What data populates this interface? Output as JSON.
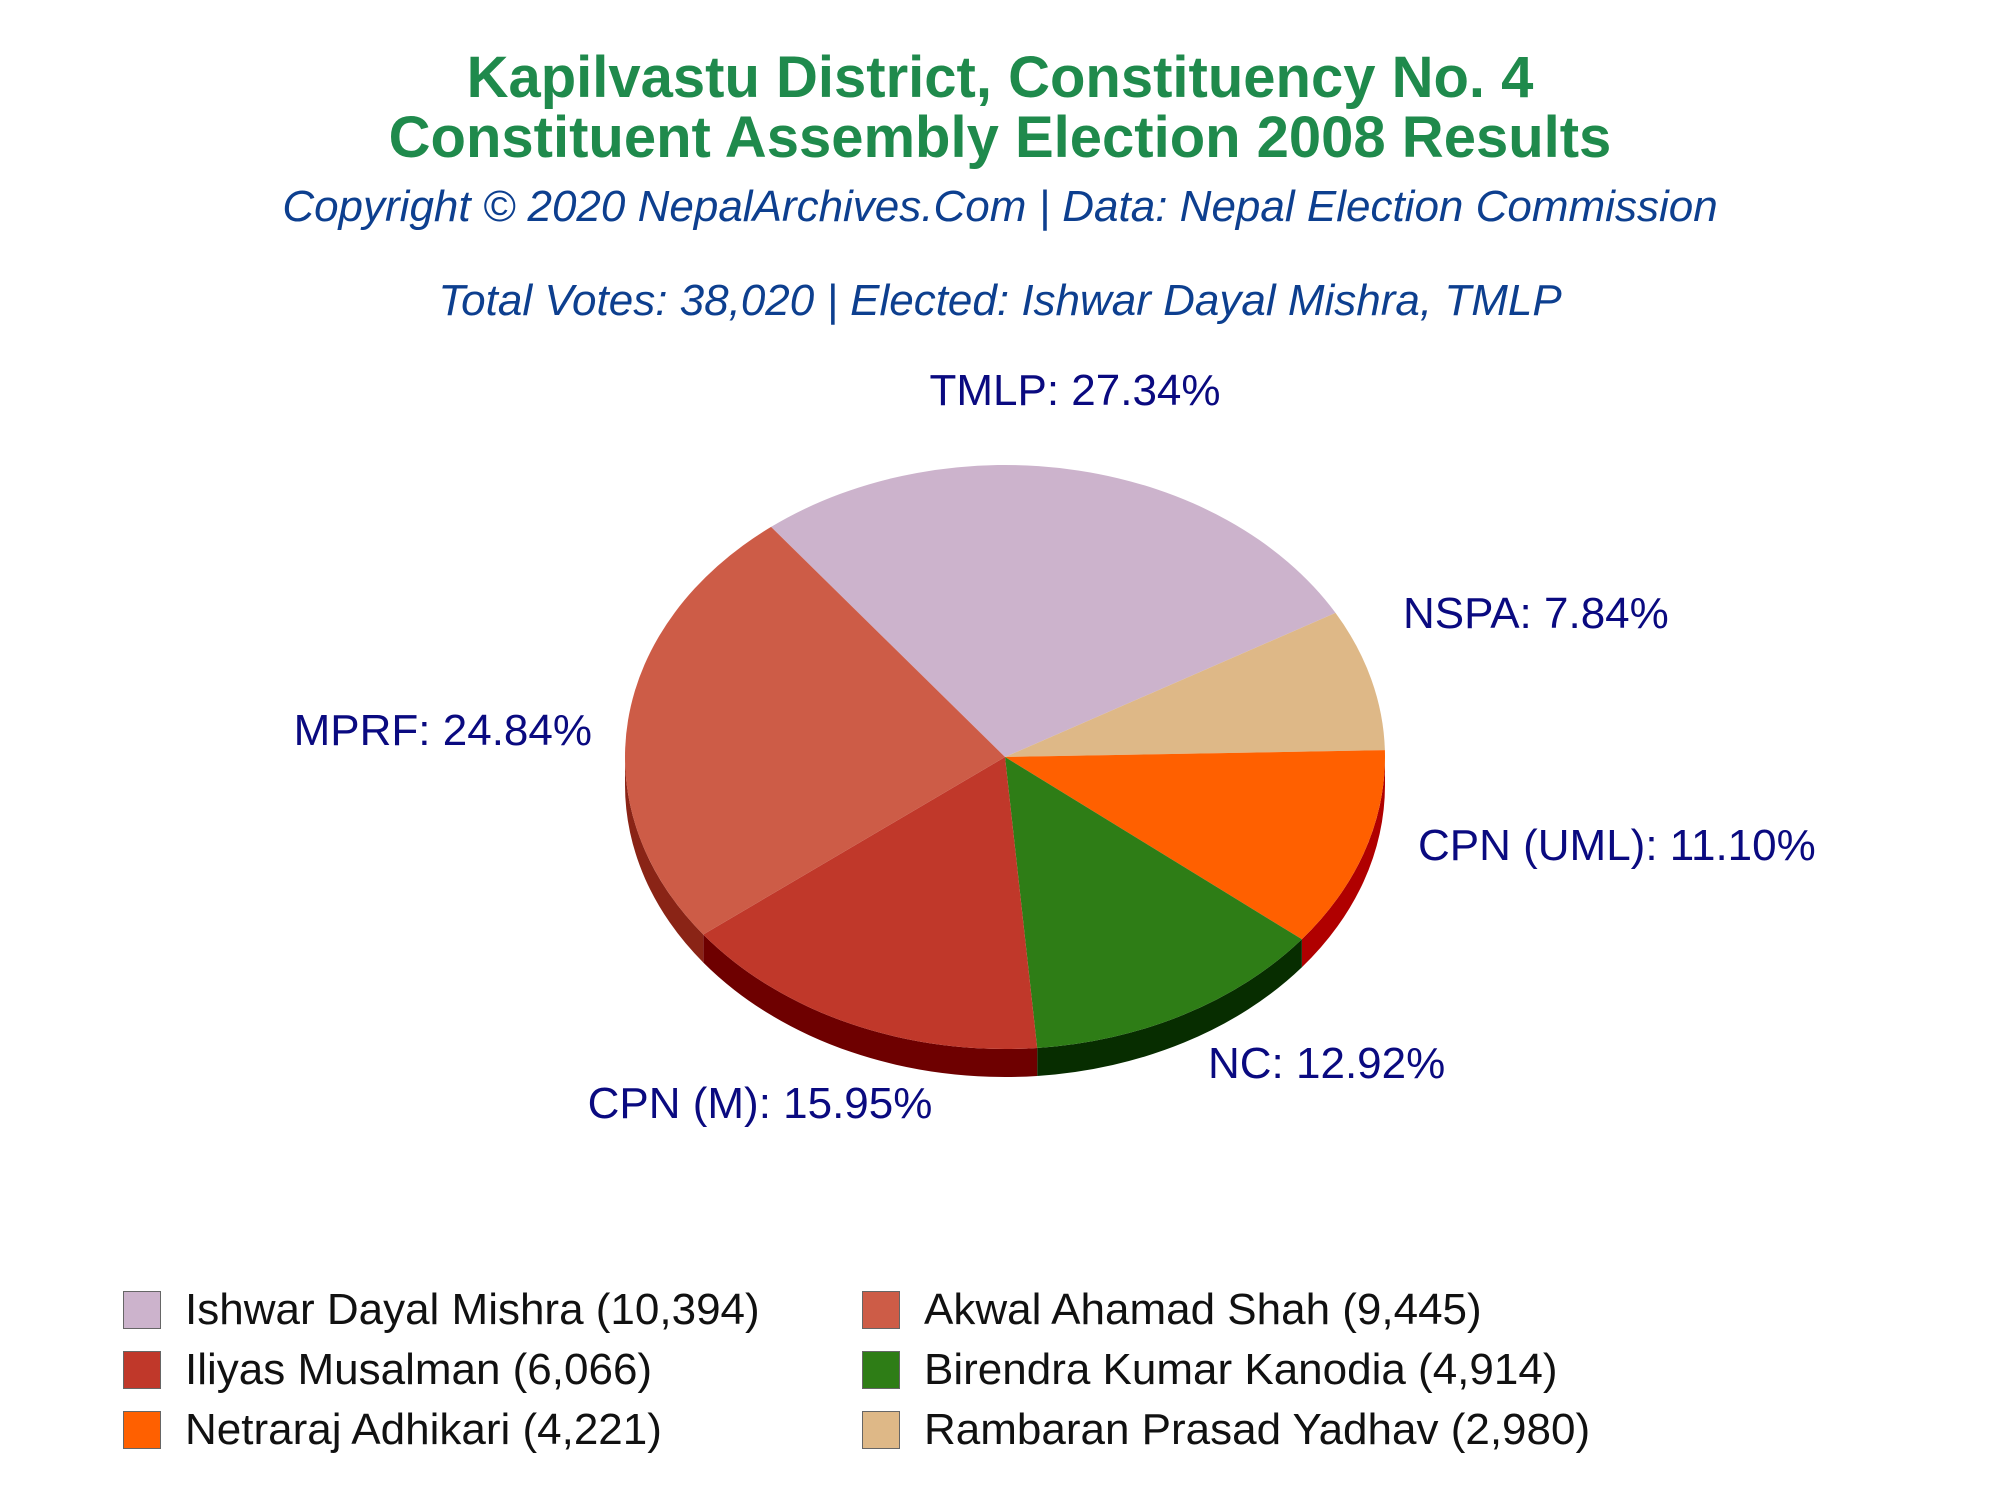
{
  "header": {
    "title_line1": "Kapilvastu District, Constituency No. 4",
    "title_line2": "Constituent Assembly Election 2008 Results",
    "copyright": "Copyright © 2020 NepalArchives.Com | Data: Nepal Election Commission",
    "summary": "Total Votes: 38,020 | Elected: Ishwar Dayal Mishra, TMLP"
  },
  "chart_data": {
    "type": "pie",
    "title": "Kapilvastu District, Constituency No. 4 Constituent Assembly Election 2008 Results",
    "total_votes": 38020,
    "slices": [
      {
        "party": "TMLP",
        "candidate": "Ishwar Dayal Mishra",
        "votes": 10394,
        "percent": 27.34,
        "label": "TMLP: 27.34%",
        "legend": "Ishwar Dayal Mishra (10,394)",
        "color": "#ccb3cc",
        "dark": "#8c6c8c"
      },
      {
        "party": "NSPA",
        "candidate": "Rambaran Prasad Yadhav",
        "votes": 2980,
        "percent": 7.84,
        "label": "NSPA: 7.84%",
        "legend": "Rambaran Prasad Yadhav (2,980)",
        "color": "#deb887",
        "dark": "#9a7a4c"
      },
      {
        "party": "CPN (UML)",
        "candidate": "Netraraj Adhikari",
        "votes": 4221,
        "percent": 11.1,
        "label": "CPN (UML): 11.10%",
        "legend": "Netraraj Adhikari (4,221)",
        "color": "#ff6000",
        "dark": "#b00000"
      },
      {
        "party": "NC",
        "candidate": "Birendra Kumar Kanodia",
        "votes": 4914,
        "percent": 12.92,
        "label": "NC: 12.92%",
        "legend": "Birendra Kumar Kanodia (4,914)",
        "color": "#2e7d16",
        "dark": "#072d00"
      },
      {
        "party": "CPN (M)",
        "candidate": "Iliyas Musalman",
        "votes": 6066,
        "percent": 15.95,
        "label": "CPN (M): 15.95%",
        "legend": "Iliyas Musalman (6,066)",
        "color": "#c0382a",
        "dark": "#6e0000"
      },
      {
        "party": "MPRF",
        "candidate": "Akwal Ahamad Shah",
        "votes": 9445,
        "percent": 24.84,
        "label": "MPRF: 24.84%",
        "legend": "Akwal Ahamad Shah (9,445)",
        "color": "#cd5c47",
        "dark": "#8a2416"
      }
    ],
    "legend_order": [
      "Ishwar Dayal Mishra (10,394)",
      "Akwal Ahamad Shah (9,445)",
      "Iliyas Musalman (6,066)",
      "Birendra Kumar Kanodia (4,914)",
      "Netraraj Adhikari (4,221)",
      "Rambaran Prasad Yadhav (2,980)"
    ],
    "legend_placement": "bottom",
    "label_color": "#0a0a80"
  }
}
